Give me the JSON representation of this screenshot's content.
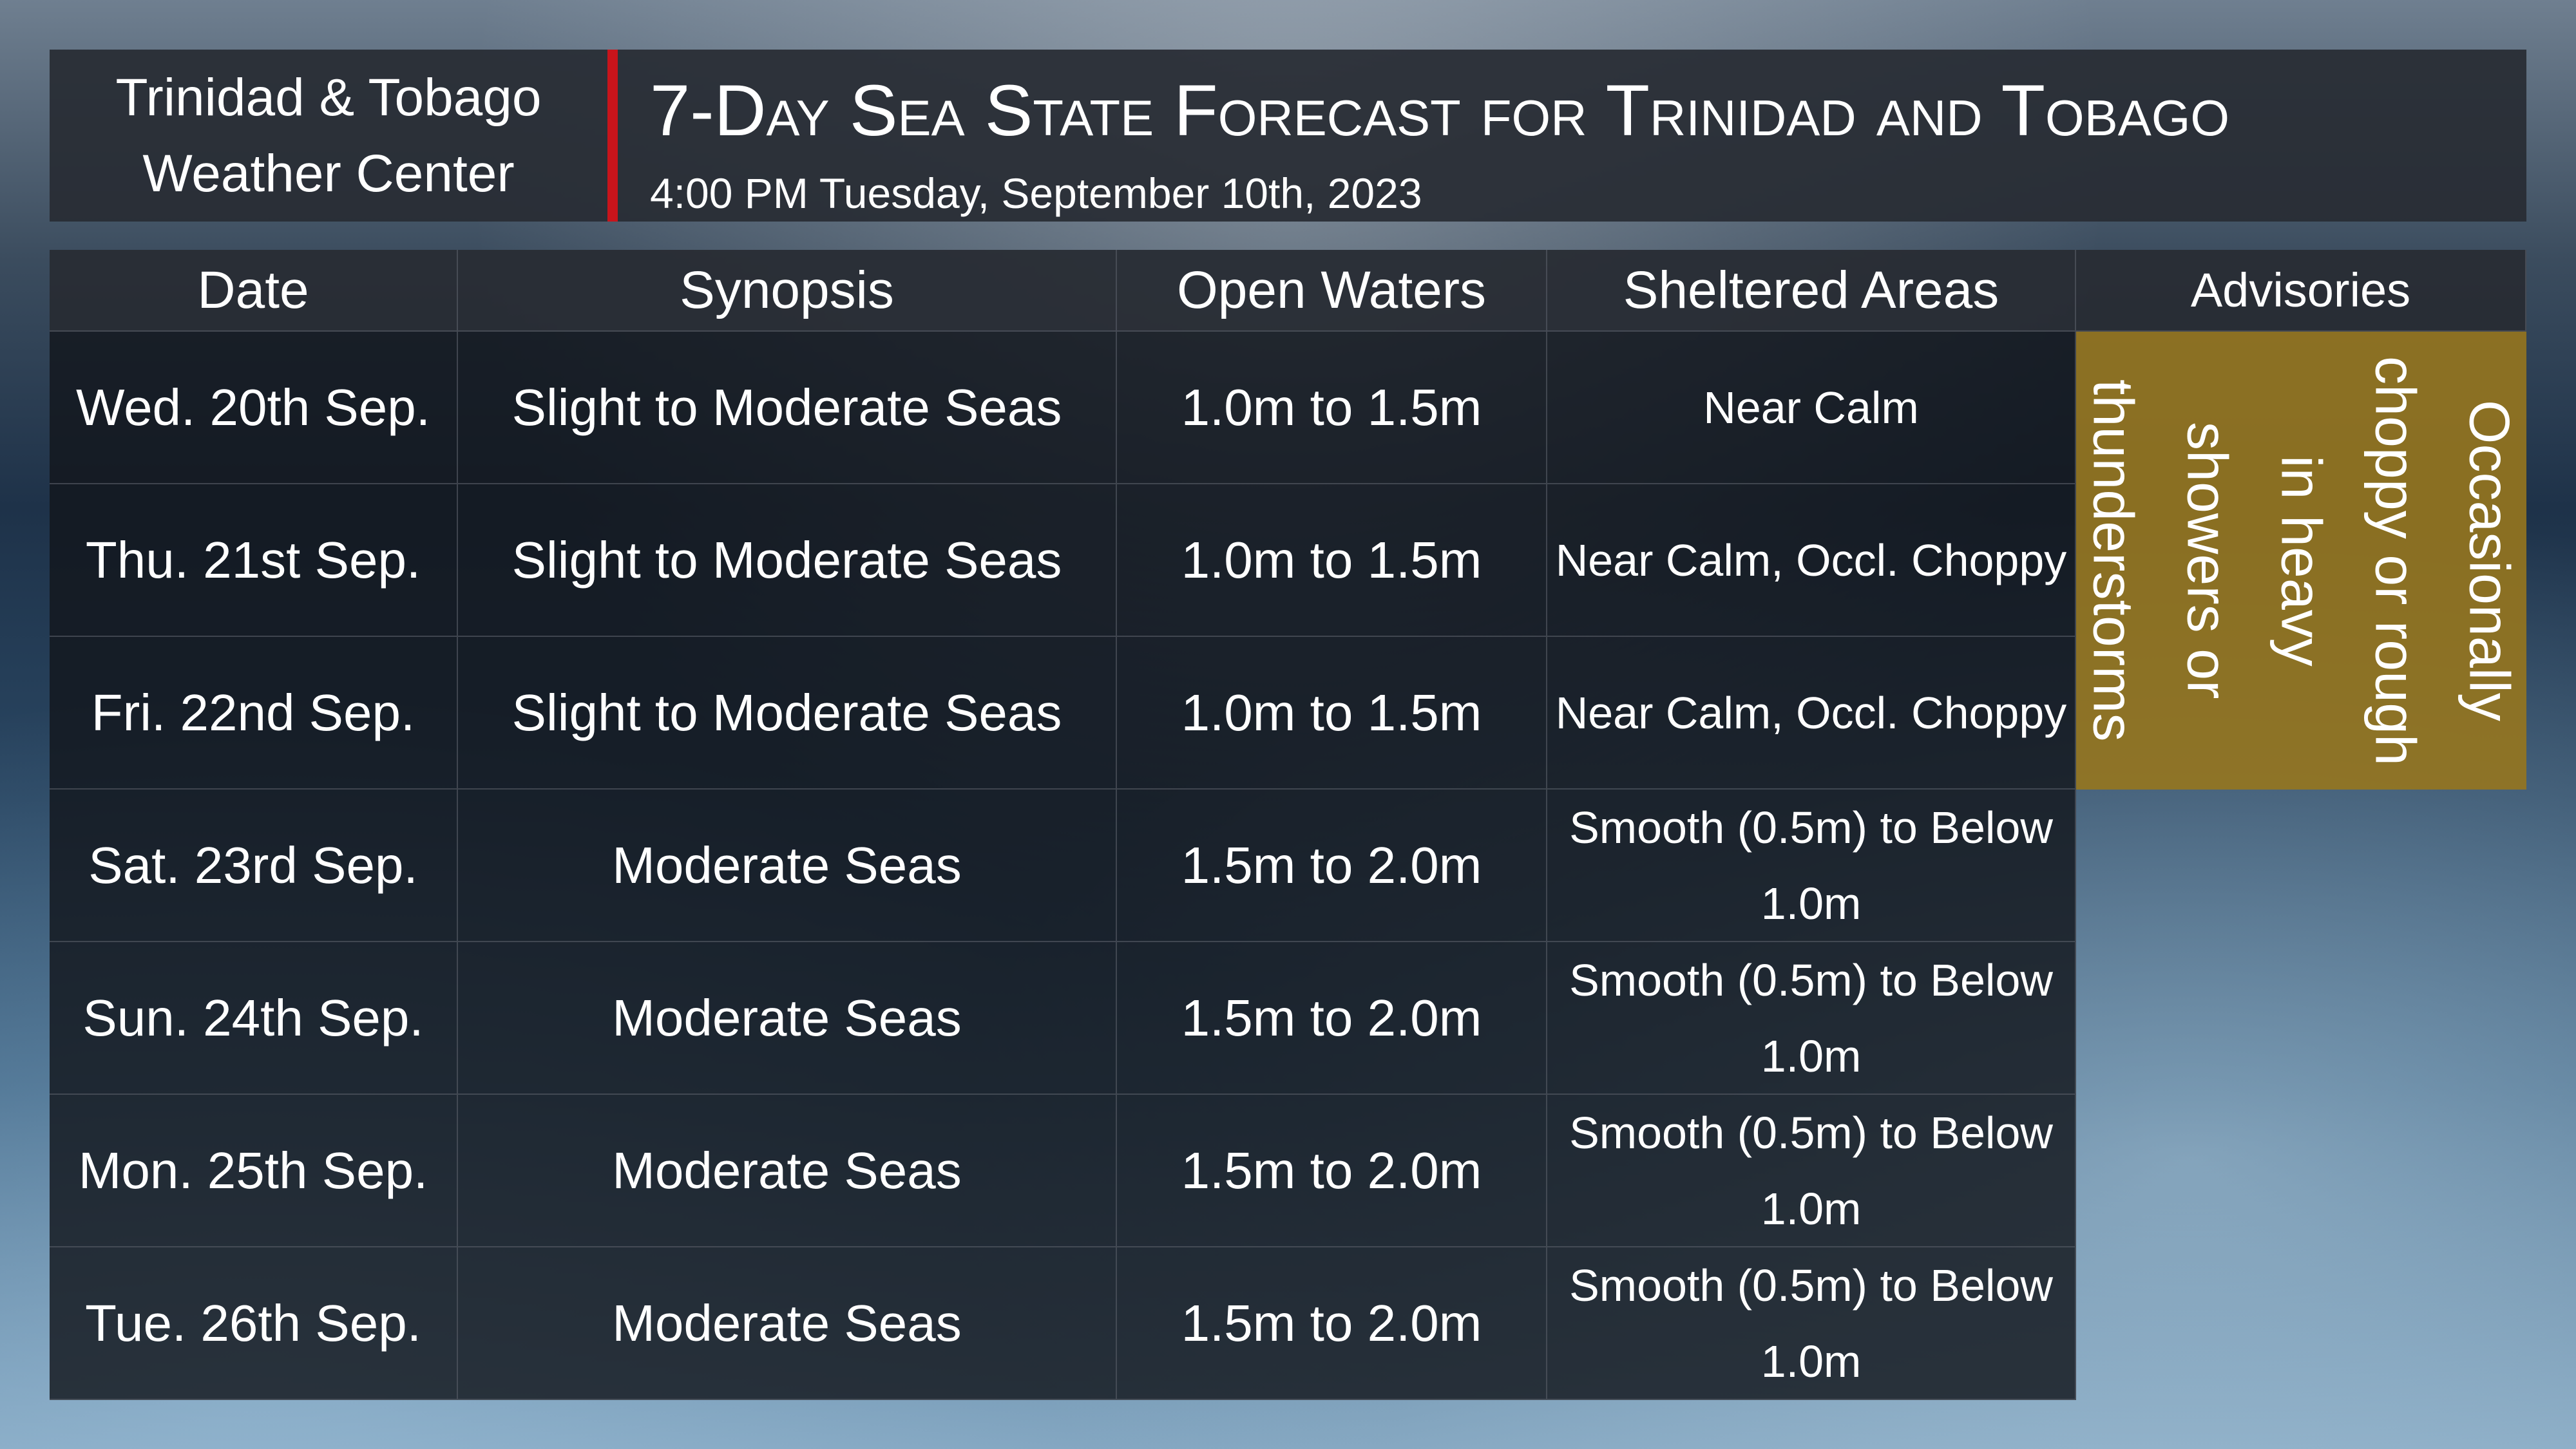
{
  "header": {
    "organization_lines": [
      "Trinidad & Tobago",
      "Weather Center"
    ],
    "title": "7-Day Sea State Forecast for Trinidad and Tobago",
    "issued": "4:00 PM Tuesday, September 10th, 2023"
  },
  "table": {
    "columns": [
      "Date",
      "Synopsis",
      "Open Waters",
      "Sheltered Areas",
      "Advisories"
    ],
    "rows": [
      [
        "Wed. 20th Sep.",
        "Slight to Moderate Seas",
        "1.0m to 1.5m",
        "Near Calm"
      ],
      [
        "Thu. 21st Sep.",
        "Slight to Moderate Seas",
        "1.0m to 1.5m",
        "Near Calm, Occl. Choppy"
      ],
      [
        "Fri. 22nd Sep.",
        "Slight to Moderate Seas",
        "1.0m to 1.5m",
        "Near Calm, Occl. Choppy"
      ],
      [
        "Sat. 23rd Sep.",
        "Moderate Seas",
        "1.5m to 2.0m",
        "Smooth (0.5m) to Below 1.0m"
      ],
      [
        "Sun. 24th Sep.",
        "Moderate Seas",
        "1.5m to 2.0m",
        "Smooth (0.5m) to Below 1.0m"
      ],
      [
        "Mon. 25th Sep.",
        "Moderate Seas",
        "1.5m to 2.0m",
        "Smooth (0.5m) to Below 1.0m"
      ],
      [
        "Tue. 26th Sep.",
        "Moderate Seas",
        "1.5m to 2.0m",
        "Smooth (0.5m) to Below 1.0m"
      ]
    ],
    "advisory": "Occasionally choppy or rough in heavy showers or thunderstorms"
  }
}
